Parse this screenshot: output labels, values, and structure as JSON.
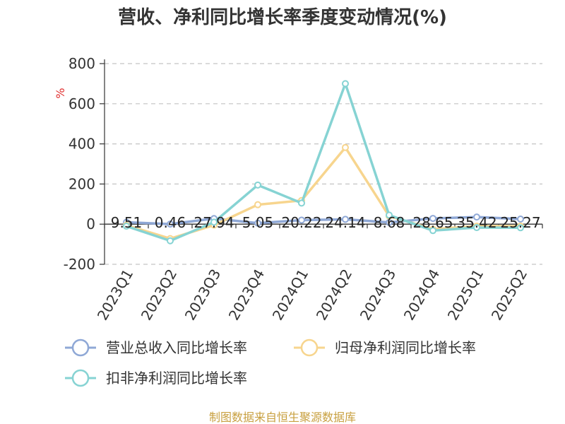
{
  "chart_data": {
    "type": "line",
    "title": "营收、净利同比增长率季度变动情况(%)",
    "ylabel": "%",
    "ylim": [
      -200,
      800
    ],
    "yticks": [
      800,
      600,
      400,
      200,
      0,
      -200
    ],
    "grid": true,
    "legend_position": "bottom",
    "categories": [
      "2023Q1",
      "2023Q2",
      "2023Q3",
      "2023Q4",
      "2024Q1",
      "2024Q2",
      "2024Q3",
      "2024Q4",
      "2025Q1",
      "2025Q2"
    ],
    "series": [
      {
        "name": "营业总收入同比增长率",
        "color": "#8fa8d6",
        "values": [
          9.51,
          0.46,
          27.94,
          5.05,
          20.22,
          24.14,
          8.68,
          28.65,
          35.42,
          25.27
        ]
      },
      {
        "name": "归母净利润同比增长率",
        "color": "#f7d58e",
        "values": [
          -5,
          -72,
          -5,
          97,
          118,
          382,
          40,
          -25,
          -10,
          -10
        ]
      },
      {
        "name": "扣非净利润同比增长率",
        "color": "#86d3d3",
        "values": [
          -10,
          -83,
          10,
          195,
          105,
          700,
          45,
          -32,
          -17,
          -18
        ]
      }
    ],
    "data_labels": [
      "9.51",
      "0.46",
      "27.94",
      "5.05",
      "20.22",
      "24.14",
      "8.68",
      "28.65",
      "35.42",
      "25.27"
    ],
    "source": "制图数据来自恒生聚源数据库"
  }
}
